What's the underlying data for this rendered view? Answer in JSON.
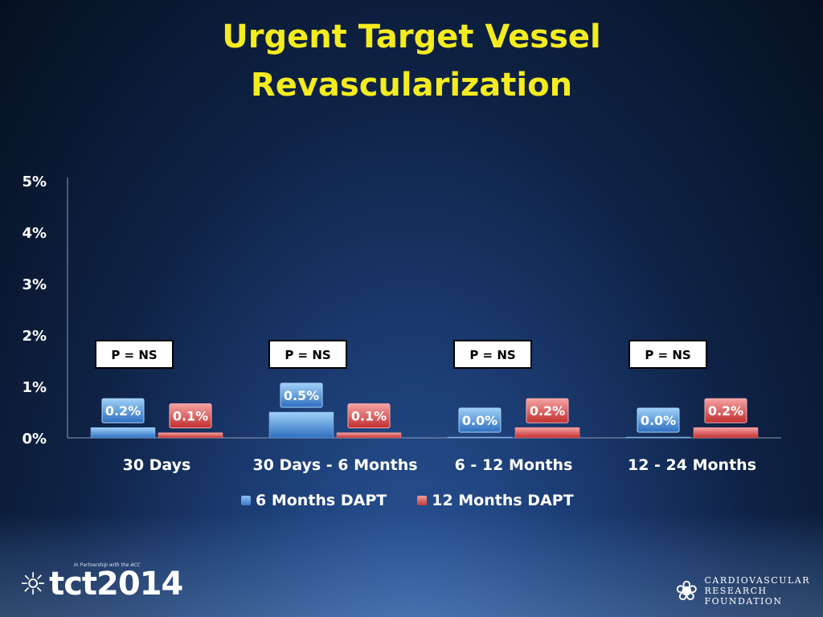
{
  "title_line1": "Urgent Target Vessel",
  "title_line2": "Revascularization",
  "chart_data": {
    "type": "bar",
    "categories": [
      "30 Days",
      "30 Days - 6 Months",
      "6 - 12 Months",
      "12 - 24 Months"
    ],
    "series": [
      {
        "name": "6 Months DAPT",
        "values": [
          0.2,
          0.5,
          0.0,
          0.0
        ],
        "labels": [
          "0.2%",
          "0.5%",
          "0.0%",
          "0.0%"
        ],
        "color": "#4a90d9"
      },
      {
        "name": "12 Months DAPT",
        "values": [
          0.1,
          0.1,
          0.2,
          0.2
        ],
        "labels": [
          "0.1%",
          "0.1%",
          "0.2%",
          "0.2%"
        ],
        "color": "#d94a4a"
      }
    ],
    "yticks": [
      "0%",
      "1%",
      "2%",
      "3%",
      "4%",
      "5%"
    ],
    "ylim": [
      0,
      5
    ],
    "annotations": [
      "P = NS",
      "P = NS",
      "P = NS",
      "P = NS"
    ],
    "legend_position": "bottom",
    "grid": false
  },
  "logos": {
    "tct": "tct2014",
    "tct_sub": "In Partnership with the ACC",
    "crf_lines": [
      "CARDIOVASCULAR",
      "RESEARCH",
      "FOUNDATION"
    ]
  }
}
